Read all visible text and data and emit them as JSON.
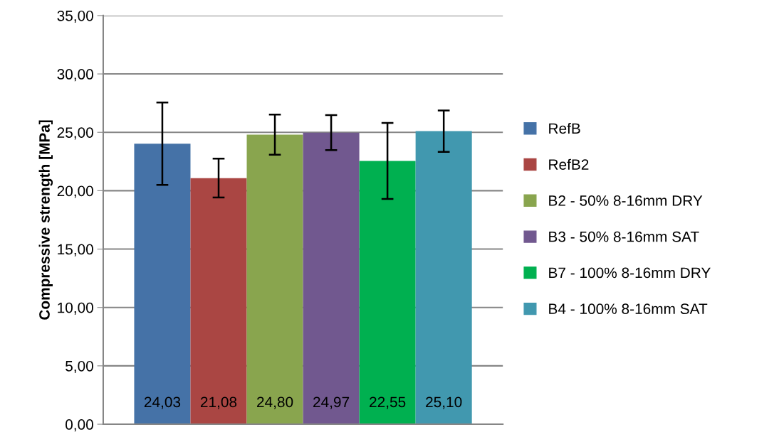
{
  "chart_data": {
    "type": "bar",
    "ylabel": "Compressive strength [MPa]",
    "categories": [
      null
    ],
    "series": [
      {
        "name": "RefB",
        "color": "#4572a7",
        "values": [
          24.03
        ],
        "errors": [
          3.53
        ],
        "value_labels": [
          "24,03"
        ]
      },
      {
        "name": "RefB2",
        "color": "#aa4643",
        "values": [
          21.08
        ],
        "errors": [
          1.66
        ],
        "value_labels": [
          "21,08"
        ]
      },
      {
        "name": "B2 - 50% 8-16mm DRY",
        "color": "#89a54e",
        "values": [
          24.8
        ],
        "errors": [
          1.72
        ],
        "value_labels": [
          "24,80"
        ]
      },
      {
        "name": "B3 - 50% 8-16mm SAT",
        "color": "#71588f",
        "values": [
          24.97
        ],
        "errors": [
          1.5
        ],
        "value_labels": [
          "24,97"
        ]
      },
      {
        "name": "B7 - 100% 8-16mm DRY",
        "color": "#00b050",
        "values": [
          22.55
        ],
        "errors": [
          3.25
        ],
        "value_labels": [
          "22,55"
        ]
      },
      {
        "name": "B4 - 100% 8-16mm SAT",
        "color": "#4198af",
        "values": [
          25.1
        ],
        "errors": [
          1.77
        ],
        "value_labels": [
          "25,10"
        ]
      }
    ],
    "ylim": [
      0,
      35
    ],
    "yticks": [
      {
        "value": 0,
        "label": "0,00"
      },
      {
        "value": 5,
        "label": "5,00"
      },
      {
        "value": 10,
        "label": "10,00"
      },
      {
        "value": 15,
        "label": "15,00"
      },
      {
        "value": 20,
        "label": "20,00"
      },
      {
        "value": 25,
        "label": "25,00"
      },
      {
        "value": 30,
        "label": "30,00"
      },
      {
        "value": 35,
        "label": "35,00"
      }
    ],
    "grid": "y",
    "legend": "right"
  }
}
